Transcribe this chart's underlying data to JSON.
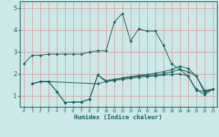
{
  "xlabel": "Humidex (Indice chaleur)",
  "xlim": [
    -0.5,
    23.5
  ],
  "ylim": [
    0.5,
    5.3
  ],
  "yticks": [
    1,
    2,
    3,
    4,
    5
  ],
  "xticks": [
    0,
    1,
    2,
    3,
    4,
    5,
    6,
    7,
    8,
    9,
    10,
    11,
    12,
    13,
    14,
    15,
    16,
    17,
    18,
    19,
    20,
    21,
    22,
    23
  ],
  "bg_color": "#cce8e8",
  "grid_color": "#daa0a0",
  "line_color": "#1a6060",
  "lines": [
    {
      "x": [
        0,
        1,
        2,
        3,
        4,
        5,
        6,
        7,
        8,
        9,
        10,
        11,
        12,
        13,
        14,
        15,
        16,
        17,
        18,
        19,
        20,
        21,
        22,
        23
      ],
      "y": [
        2.45,
        2.85,
        2.85,
        2.9,
        2.9,
        2.9,
        2.9,
        2.9,
        3.0,
        3.05,
        3.05,
        4.35,
        4.75,
        3.5,
        4.05,
        3.95,
        3.95,
        3.3,
        2.45,
        2.2,
        1.9,
        1.25,
        1.2,
        1.3
      ]
    },
    {
      "x": [
        1,
        2,
        3,
        4,
        5,
        6,
        7,
        8,
        9,
        10,
        11,
        12,
        13,
        14,
        15,
        16,
        17,
        18,
        19,
        20,
        21,
        22,
        23
      ],
      "y": [
        1.55,
        1.65,
        1.65,
        1.2,
        0.7,
        0.72,
        0.72,
        0.85,
        1.95,
        1.65,
        1.7,
        1.75,
        1.8,
        1.85,
        1.88,
        1.9,
        1.95,
        1.98,
        2.0,
        1.9,
        1.3,
        1.05,
        1.3
      ]
    },
    {
      "x": [
        1,
        2,
        3,
        4,
        5,
        6,
        7,
        8,
        9,
        10,
        11,
        12,
        13,
        14,
        15,
        16,
        17,
        18,
        19,
        20,
        21,
        22,
        23
      ],
      "y": [
        1.55,
        1.65,
        1.65,
        1.2,
        0.7,
        0.72,
        0.72,
        0.85,
        1.95,
        1.7,
        1.75,
        1.8,
        1.85,
        1.9,
        1.93,
        1.95,
        2.0,
        2.1,
        2.2,
        2.1,
        1.9,
        1.15,
        1.3
      ]
    },
    {
      "x": [
        1,
        2,
        3,
        9,
        10,
        11,
        12,
        13,
        14,
        15,
        16,
        17,
        18,
        19,
        20,
        21,
        22,
        23
      ],
      "y": [
        1.55,
        1.65,
        1.65,
        1.55,
        1.65,
        1.75,
        1.82,
        1.88,
        1.93,
        1.97,
        2.03,
        2.1,
        2.2,
        2.35,
        2.25,
        1.9,
        1.25,
        1.3
      ]
    }
  ]
}
